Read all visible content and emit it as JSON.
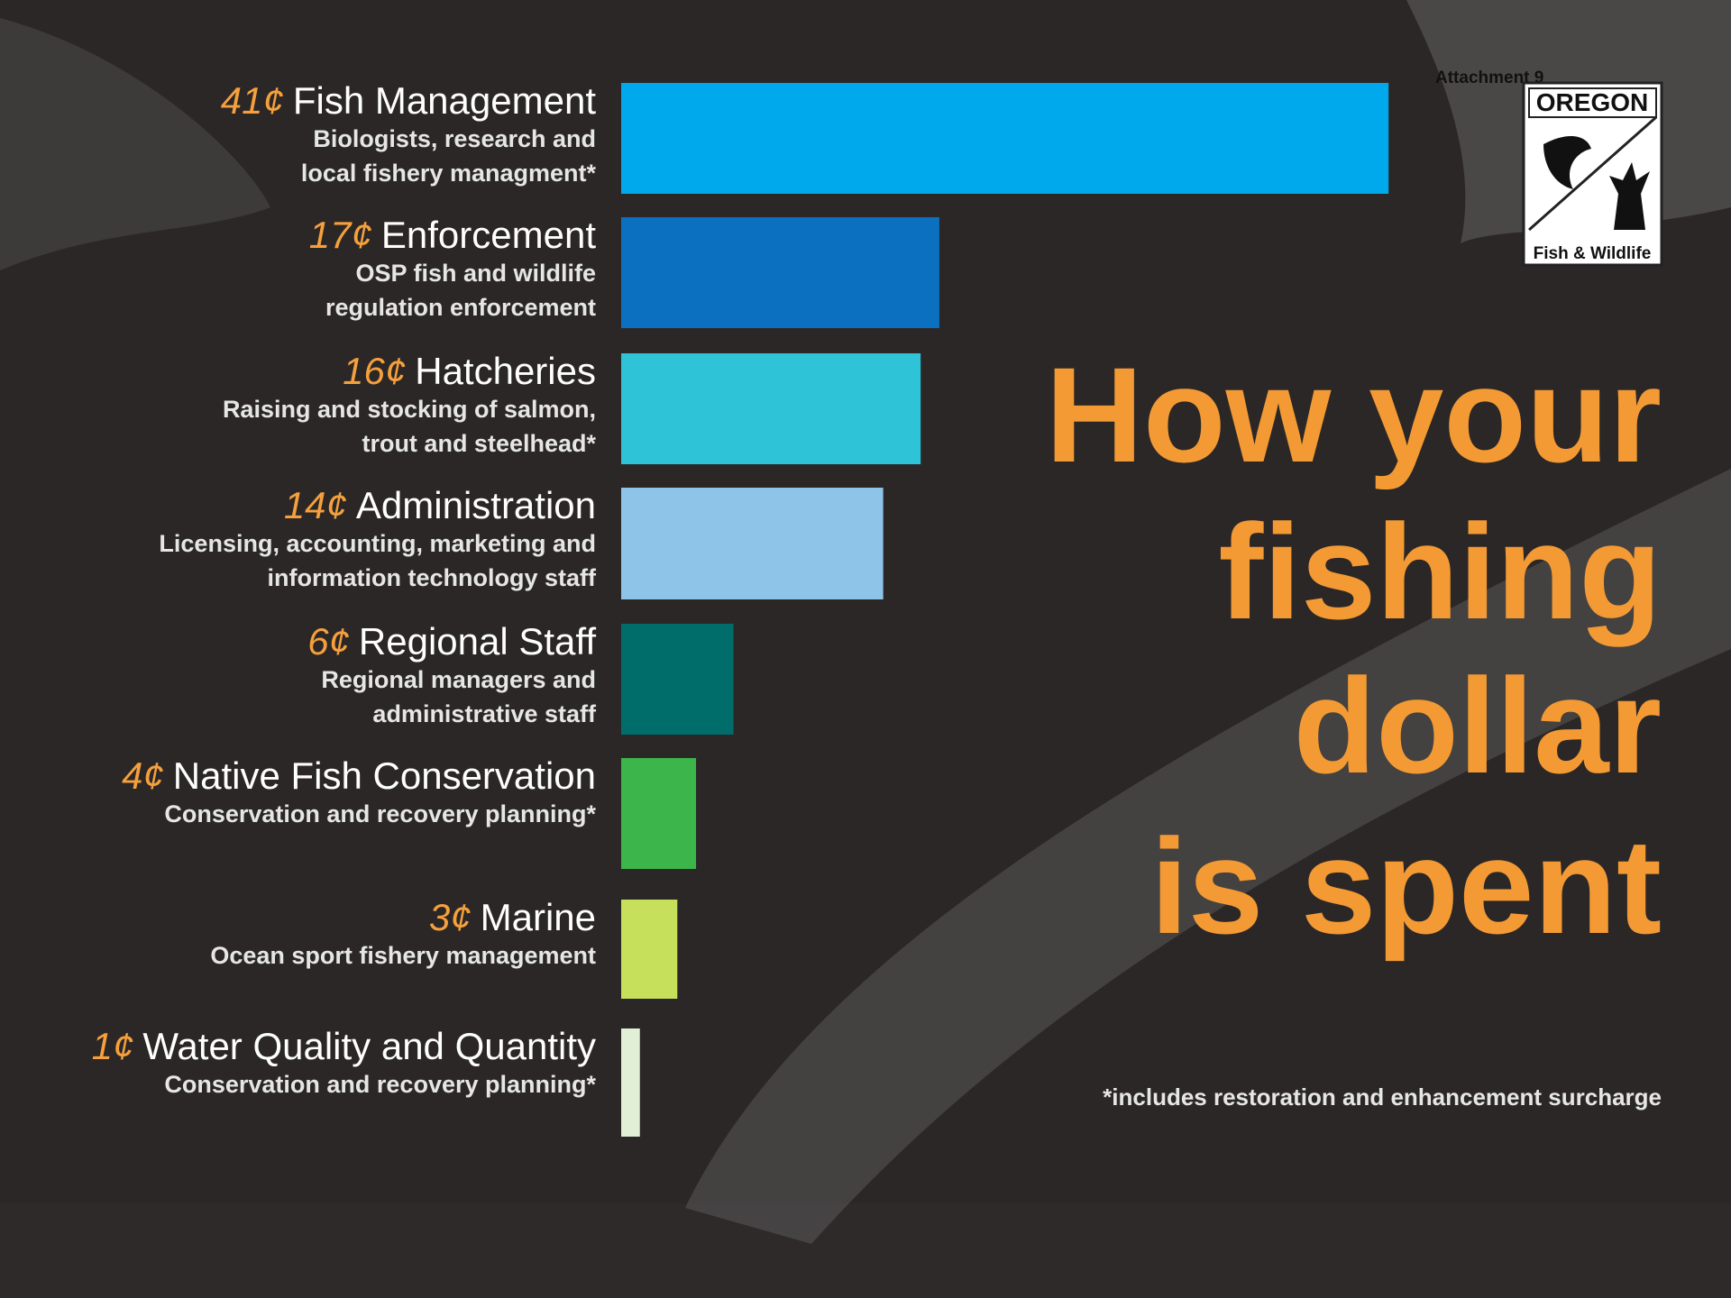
{
  "chart_data": {
    "type": "bar",
    "attachment": "Attachment 9",
    "logo": {
      "top": "OREGON",
      "bottom": "Fish & Wildlife"
    },
    "title_lines": [
      "How your",
      "fishing",
      "dollar",
      "is spent"
    ],
    "footnote": "*includes restoration and enhancement surcharge",
    "categories": [
      "Fish Management",
      "Enforcement",
      "Hatcheries",
      "Administration",
      "Regional Staff",
      "Native Fish Conservation",
      "Marine",
      "Water Quality and Quantity"
    ],
    "values": [
      41,
      17,
      16,
      14,
      6,
      4,
      3,
      1
    ],
    "value_labels": [
      "41¢",
      "17¢",
      "16¢",
      "14¢",
      "6¢",
      "4¢",
      "3¢",
      "1¢"
    ],
    "descriptions": [
      [
        "Biologists, research and",
        "local fishery managment*"
      ],
      [
        "OSP fish and wildlife",
        "regulation enforcement"
      ],
      [
        "Raising and stocking of salmon,",
        "trout and steelhead*"
      ],
      [
        "Licensing, accounting, marketing and",
        "information technology staff"
      ],
      [
        "Regional managers and",
        "administrative staff"
      ],
      [
        "Conservation and recovery planning*"
      ],
      [
        "Ocean sport fishery management"
      ],
      [
        "Conservation and recovery planning*"
      ]
    ],
    "colors": [
      "#00a8ec",
      "#0b70c0",
      "#2ec3d6",
      "#8ec4e8",
      "#006d6b",
      "#3cb64a",
      "#c6e05c",
      "#e0efd6"
    ]
  }
}
